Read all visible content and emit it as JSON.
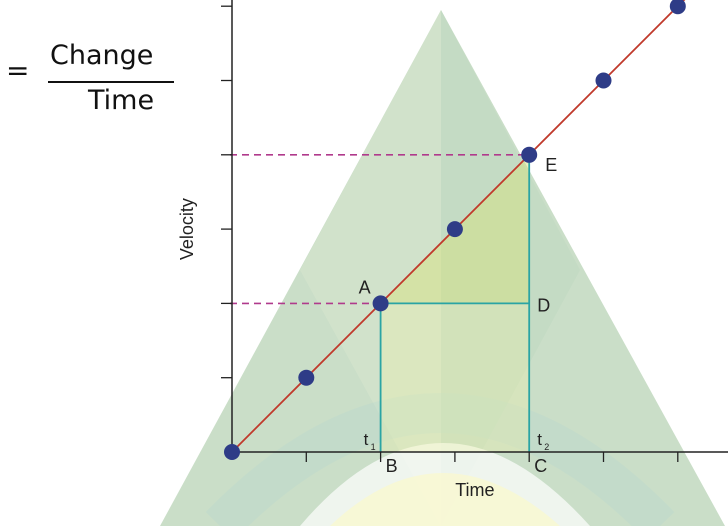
{
  "formula": {
    "equals": "=",
    "numerator": "Change",
    "denominator": "Time"
  },
  "chart_data": {
    "type": "line",
    "title": "",
    "xlabel": "Time",
    "ylabel": "Velocity",
    "x": [
      0,
      1,
      2,
      3,
      4,
      5,
      6
    ],
    "series": [
      {
        "values": [
          0,
          1,
          2,
          3,
          4,
          5,
          6
        ],
        "color": "#c0392b",
        "marker_color": "#2e3c87"
      }
    ],
    "xlim": [
      0,
      6.7
    ],
    "ylim": [
      0,
      6.2
    ],
    "grid": false,
    "x_tick_count": 7,
    "y_tick_count": 6,
    "points": [
      {
        "label": "A",
        "x": 2,
        "y": 2
      },
      {
        "label": "E",
        "x": 4,
        "y": 4
      },
      {
        "label": "D",
        "x": 4,
        "y": 2
      },
      {
        "label": "B",
        "x": 2,
        "y": 0
      },
      {
        "label": "C",
        "x": 4,
        "y": 0
      }
    ],
    "time_labels": [
      {
        "label": "t",
        "sub": "1",
        "x": 2
      },
      {
        "label": "t",
        "sub": "2",
        "x": 4
      }
    ],
    "colors": {
      "line": "#c0392b",
      "marker": "#2e3c87",
      "construction": "#2aa4a4",
      "dashed": "#b03a8c",
      "axis": "#222222",
      "shade": "#d8e27a"
    }
  }
}
